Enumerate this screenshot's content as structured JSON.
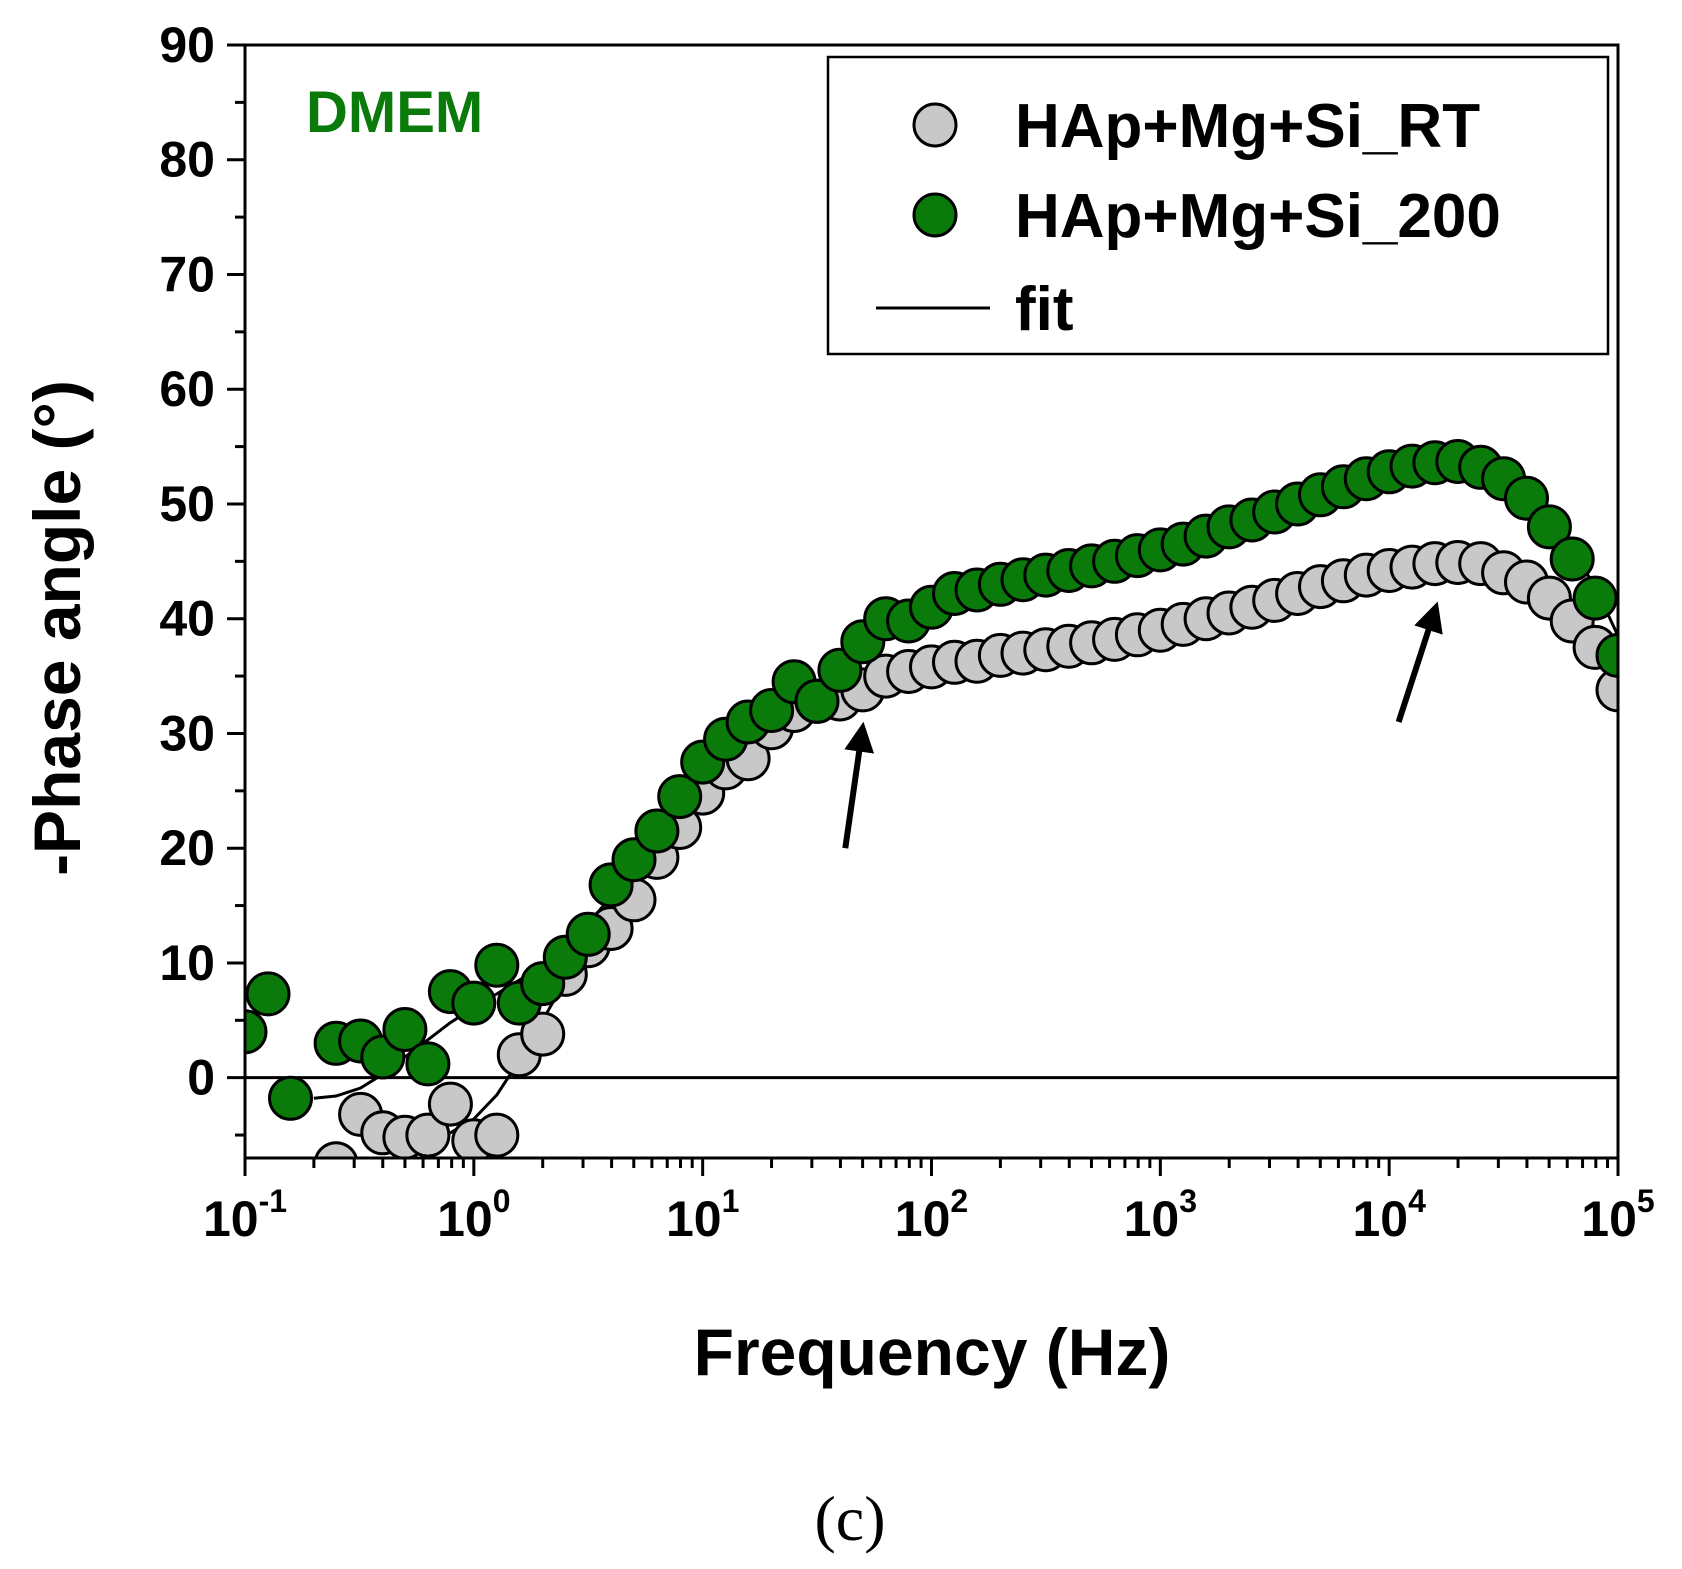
{
  "chart_data": {
    "type": "scatter",
    "title": "",
    "xlabel": "Frequency (Hz)",
    "ylabel": "-Phase angle (°)",
    "xscale": "log",
    "xlim": [
      0.1,
      100000
    ],
    "ylim": [
      -7,
      90
    ],
    "x_ticks": [
      {
        "value": 0.1,
        "base": "10",
        "exp": "-1"
      },
      {
        "value": 1,
        "base": "10",
        "exp": "0"
      },
      {
        "value": 10,
        "base": "10",
        "exp": "1"
      },
      {
        "value": 100,
        "base": "10",
        "exp": "2"
      },
      {
        "value": 1000,
        "base": "10",
        "exp": "3"
      },
      {
        "value": 10000,
        "base": "10",
        "exp": "4"
      },
      {
        "value": 100000,
        "base": "10",
        "exp": "5"
      }
    ],
    "y_ticks": [
      {
        "value": 0,
        "label": "0"
      },
      {
        "value": 10,
        "label": "10"
      },
      {
        "value": 20,
        "label": "20"
      },
      {
        "value": 30,
        "label": "30"
      },
      {
        "value": 40,
        "label": "40"
      },
      {
        "value": 50,
        "label": "50"
      },
      {
        "value": 60,
        "label": "60"
      },
      {
        "value": 70,
        "label": "70"
      },
      {
        "value": 80,
        "label": "80"
      },
      {
        "value": 90,
        "label": "90"
      }
    ],
    "zero_line": 0,
    "annotation": {
      "text": "DMEM",
      "color": "#0a7a0a"
    },
    "caption": "(c)",
    "legend_position": "top-right",
    "legend": [
      {
        "label": "HAp+Mg+Si_RT",
        "kind": "marker",
        "series": 0
      },
      {
        "label": "HAp+Mg+Si_200",
        "kind": "marker",
        "series": 1
      },
      {
        "label": "fit",
        "kind": "line"
      }
    ],
    "series": [
      {
        "name": "HAp+Mg+Si_RT",
        "fill": "#c8c8c8",
        "points": [
          [
            0.25,
            -7.5
          ],
          [
            0.32,
            -3.2
          ],
          [
            0.4,
            -4.8
          ],
          [
            0.5,
            -5.2
          ],
          [
            0.63,
            -5.0
          ],
          [
            0.79,
            -2.3
          ],
          [
            1.0,
            -5.5
          ],
          [
            1.26,
            -5.0
          ],
          [
            1.58,
            2.0
          ],
          [
            2.0,
            3.8
          ],
          [
            2.51,
            9.0
          ],
          [
            3.16,
            11.5
          ],
          [
            3.98,
            13.0
          ],
          [
            5.01,
            15.5
          ],
          [
            6.31,
            19.2
          ],
          [
            7.94,
            21.8
          ],
          [
            10.0,
            24.8
          ],
          [
            12.6,
            27.0
          ],
          [
            15.8,
            27.8
          ],
          [
            20.0,
            30.5
          ],
          [
            25.1,
            32.0
          ],
          [
            31.6,
            32.8
          ],
          [
            39.8,
            33.0
          ],
          [
            50.1,
            33.8
          ],
          [
            63.1,
            35.0
          ],
          [
            79.4,
            35.4
          ],
          [
            100,
            35.8
          ],
          [
            126,
            36.2
          ],
          [
            158,
            36.3
          ],
          [
            200,
            36.8
          ],
          [
            251,
            37.0
          ],
          [
            316,
            37.3
          ],
          [
            398,
            37.6
          ],
          [
            501,
            37.9
          ],
          [
            631,
            38.2
          ],
          [
            794,
            38.6
          ],
          [
            1000,
            39.0
          ],
          [
            1259,
            39.5
          ],
          [
            1585,
            40.0
          ],
          [
            1995,
            40.5
          ],
          [
            2512,
            41.0
          ],
          [
            3162,
            41.6
          ],
          [
            3981,
            42.2
          ],
          [
            5012,
            42.8
          ],
          [
            6310,
            43.3
          ],
          [
            7943,
            43.8
          ],
          [
            10000,
            44.2
          ],
          [
            12589,
            44.5
          ],
          [
            15849,
            44.8
          ],
          [
            19953,
            44.9
          ],
          [
            25119,
            44.8
          ],
          [
            31623,
            44.0
          ],
          [
            39811,
            43.2
          ],
          [
            50119,
            41.8
          ],
          [
            63096,
            39.8
          ],
          [
            79433,
            37.5
          ],
          [
            100000,
            33.8
          ]
        ]
      },
      {
        "name": "HAp+Mg+Si_200",
        "fill": "#0a7a0a",
        "points": [
          [
            0.1,
            4.0
          ],
          [
            0.126,
            7.3
          ],
          [
            0.158,
            -1.8
          ],
          [
            0.25,
            3.0
          ],
          [
            0.32,
            3.2
          ],
          [
            0.4,
            1.8
          ],
          [
            0.5,
            4.2
          ],
          [
            0.63,
            1.2
          ],
          [
            0.79,
            7.5
          ],
          [
            1.0,
            6.5
          ],
          [
            1.26,
            9.8
          ],
          [
            1.58,
            6.5
          ],
          [
            2.0,
            8.2
          ],
          [
            2.51,
            10.5
          ],
          [
            3.16,
            12.5
          ],
          [
            3.98,
            16.8
          ],
          [
            5.01,
            19.0
          ],
          [
            6.31,
            21.5
          ],
          [
            7.94,
            24.5
          ],
          [
            10.0,
            27.5
          ],
          [
            12.6,
            29.5
          ],
          [
            15.8,
            31.0
          ],
          [
            20.0,
            32.0
          ],
          [
            25.1,
            34.5
          ],
          [
            31.6,
            32.8
          ],
          [
            39.8,
            35.5
          ],
          [
            50.1,
            38.0
          ],
          [
            63.1,
            40.0
          ],
          [
            79.4,
            39.8
          ],
          [
            100,
            41.0
          ],
          [
            126,
            42.2
          ],
          [
            158,
            42.5
          ],
          [
            200,
            43.0
          ],
          [
            251,
            43.4
          ],
          [
            316,
            43.8
          ],
          [
            398,
            44.2
          ],
          [
            501,
            44.6
          ],
          [
            631,
            45.0
          ],
          [
            794,
            45.5
          ],
          [
            1000,
            46.0
          ],
          [
            1259,
            46.5
          ],
          [
            1585,
            47.2
          ],
          [
            1995,
            48.0
          ],
          [
            2512,
            48.6
          ],
          [
            3162,
            49.3
          ],
          [
            3981,
            50.0
          ],
          [
            5012,
            50.8
          ],
          [
            6310,
            51.5
          ],
          [
            7943,
            52.2
          ],
          [
            10000,
            52.8
          ],
          [
            12589,
            53.3
          ],
          [
            15849,
            53.6
          ],
          [
            19953,
            53.7
          ],
          [
            25119,
            53.2
          ],
          [
            31623,
            52.2
          ],
          [
            39811,
            50.5
          ],
          [
            50119,
            48.0
          ],
          [
            63096,
            45.2
          ],
          [
            79433,
            41.8
          ],
          [
            100000,
            36.8
          ]
        ]
      }
    ],
    "fits": [
      {
        "series": "HAp+Mg+Si_RT",
        "points": [
          [
            0.32,
            -3.2
          ],
          [
            0.4,
            -4.2
          ],
          [
            0.5,
            -4.9
          ],
          [
            0.63,
            -5.0
          ],
          [
            0.79,
            -4.8
          ],
          [
            1.0,
            -3.6
          ],
          [
            1.26,
            -1.5
          ],
          [
            1.58,
            1.5
          ],
          [
            2.0,
            5.0
          ],
          [
            2.51,
            8.5
          ],
          [
            3.16,
            11.8
          ],
          [
            3.98,
            14.8
          ],
          [
            5.01,
            17.6
          ],
          [
            6.31,
            20.2
          ],
          [
            7.94,
            22.6
          ],
          [
            10.0,
            24.8
          ],
          [
            12.6,
            26.8
          ],
          [
            15.8,
            28.6
          ],
          [
            20.0,
            30.2
          ],
          [
            25.1,
            31.5
          ],
          [
            31.6,
            32.6
          ],
          [
            39.8,
            33.5
          ],
          [
            50.1,
            34.2
          ],
          [
            63.1,
            34.8
          ],
          [
            79.4,
            35.3
          ],
          [
            100,
            35.7
          ],
          [
            158,
            36.3
          ],
          [
            251,
            37.0
          ],
          [
            398,
            37.6
          ],
          [
            631,
            38.2
          ],
          [
            1000,
            39.0
          ],
          [
            1585,
            39.9
          ],
          [
            2512,
            41.0
          ],
          [
            3981,
            42.2
          ],
          [
            6310,
            43.4
          ],
          [
            10000,
            44.3
          ],
          [
            15849,
            44.8
          ],
          [
            19953,
            44.8
          ],
          [
            25119,
            44.4
          ],
          [
            31623,
            43.6
          ],
          [
            39811,
            42.4
          ],
          [
            50119,
            40.8
          ],
          [
            63096,
            38.9
          ],
          [
            79433,
            36.6
          ],
          [
            100000,
            34.0
          ]
        ]
      },
      {
        "series": "HAp+Mg+Si_200",
        "points": [
          [
            0.2,
            -1.8
          ],
          [
            0.25,
            -1.6
          ],
          [
            0.32,
            -0.9
          ],
          [
            0.4,
            0.3
          ],
          [
            0.5,
            1.8
          ],
          [
            0.63,
            3.3
          ],
          [
            0.79,
            4.8
          ],
          [
            1.0,
            6.1
          ],
          [
            1.26,
            7.3
          ],
          [
            1.58,
            8.5
          ],
          [
            2.0,
            9.8
          ],
          [
            2.51,
            11.4
          ],
          [
            3.16,
            13.4
          ],
          [
            3.98,
            15.8
          ],
          [
            5.01,
            18.4
          ],
          [
            6.31,
            21.0
          ],
          [
            7.94,
            23.6
          ],
          [
            10.0,
            26.0
          ],
          [
            12.6,
            28.2
          ],
          [
            15.8,
            30.0
          ],
          [
            20.0,
            31.6
          ],
          [
            25.1,
            33.0
          ],
          [
            31.6,
            34.4
          ],
          [
            39.8,
            35.8
          ],
          [
            50.1,
            37.2
          ],
          [
            63.1,
            38.6
          ],
          [
            79.4,
            39.8
          ],
          [
            100,
            40.8
          ],
          [
            158,
            42.0
          ],
          [
            251,
            42.9
          ],
          [
            398,
            43.7
          ],
          [
            631,
            44.5
          ],
          [
            1000,
            45.5
          ],
          [
            1585,
            46.8
          ],
          [
            2512,
            48.2
          ],
          [
            3981,
            49.7
          ],
          [
            6310,
            51.2
          ],
          [
            10000,
            52.5
          ],
          [
            15849,
            53.3
          ],
          [
            19953,
            53.4
          ],
          [
            25119,
            53.0
          ],
          [
            31623,
            52.0
          ],
          [
            39811,
            50.5
          ],
          [
            50119,
            48.5
          ],
          [
            63096,
            46.0
          ],
          [
            79433,
            42.8
          ],
          [
            100000,
            38.5
          ]
        ]
      }
    ],
    "arrows": [
      {
        "from": [
          42,
          20
        ],
        "to": [
          50,
          30.5
        ]
      },
      {
        "from": [
          11000,
          31
        ],
        "to": [
          16000,
          41
        ]
      }
    ]
  }
}
